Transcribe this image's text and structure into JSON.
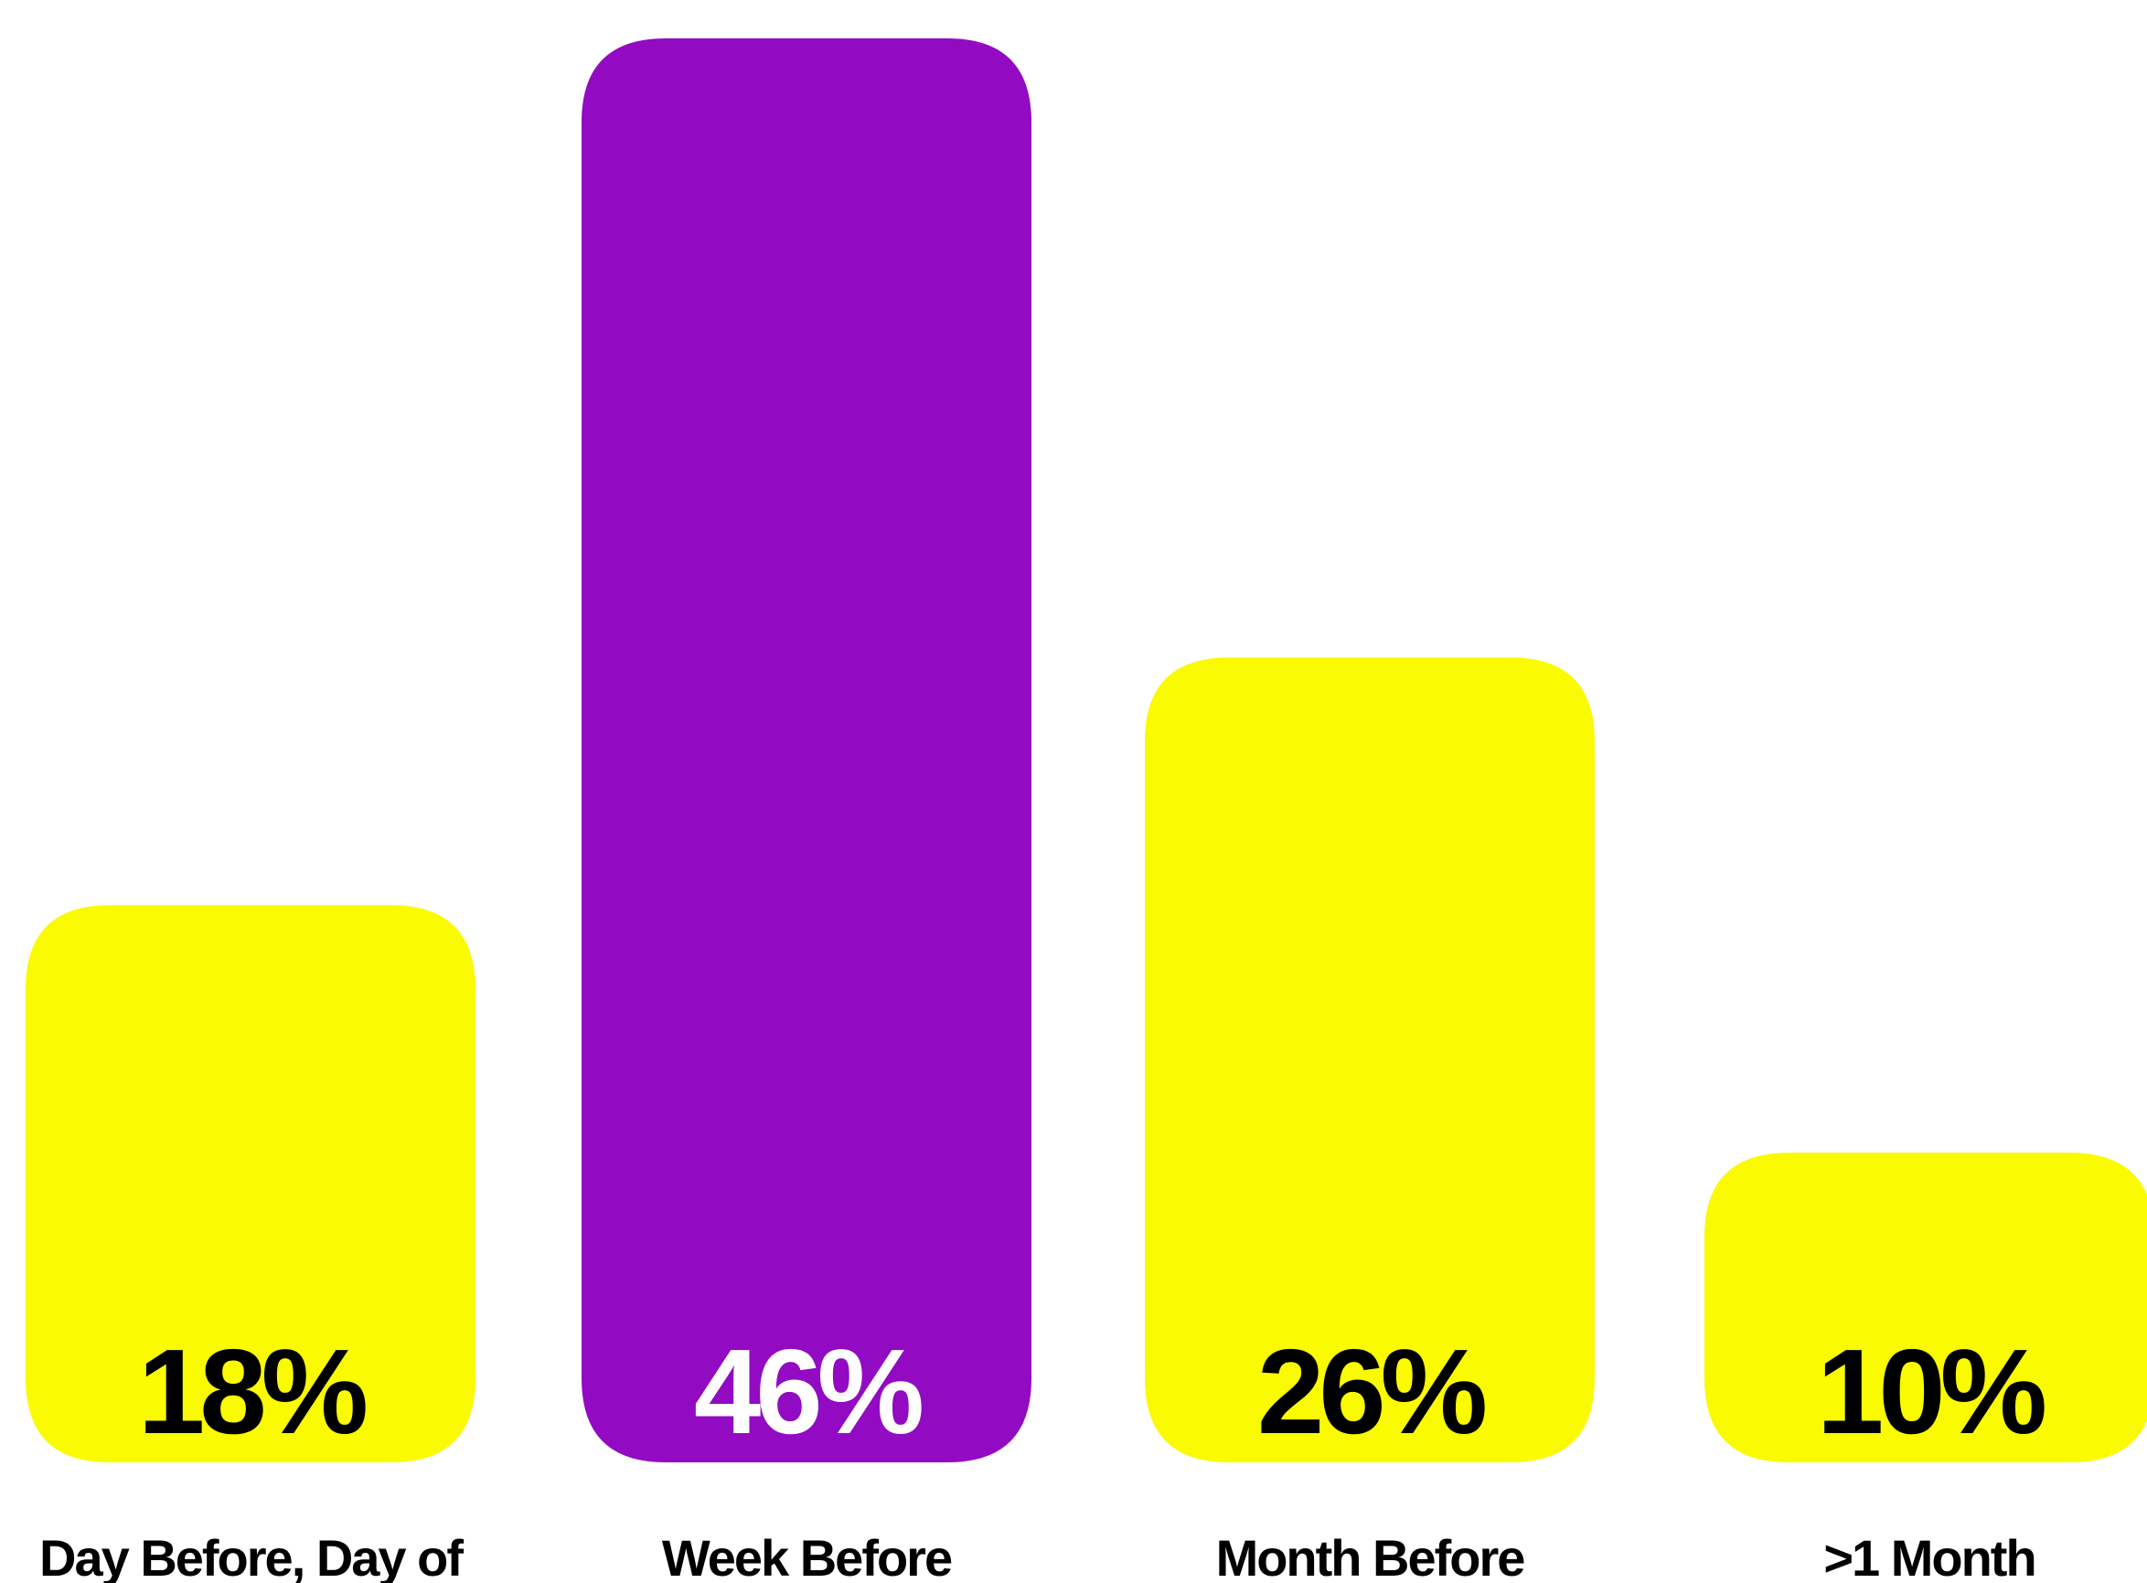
{
  "chart_data": {
    "type": "bar",
    "title": "",
    "xlabel": "",
    "ylabel": "",
    "ylim": [
      0,
      46
    ],
    "grid": false,
    "legend": "none",
    "categories": [
      "Day Before, Day of",
      "Week Before",
      "Month Before",
      ">1 Month"
    ],
    "values": [
      18,
      46,
      26,
      10
    ],
    "value_labels": [
      "18%",
      "46%",
      "26%",
      "10%"
    ],
    "colors": [
      "#FAFA00",
      "#920AC2",
      "#FAFA00",
      "#FAFA00"
    ],
    "value_label_colors": [
      "#000000",
      "#FFFFFF",
      "#000000",
      "#000000"
    ]
  }
}
